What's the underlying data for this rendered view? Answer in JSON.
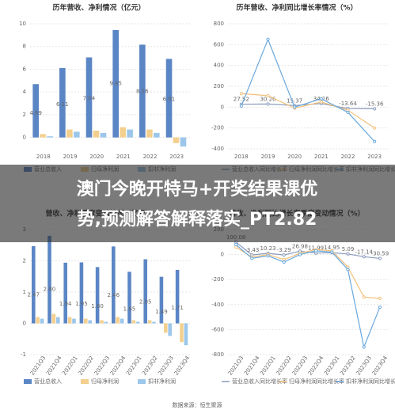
{
  "chart_data": [
    {
      "type": "bar",
      "title": "历年营收、净利情况（亿元）",
      "categories": [
        "2018",
        "2019",
        "2020",
        "2021",
        "2022",
        "2023"
      ],
      "ylim": [
        -1,
        10
      ],
      "yticks": [
        0,
        2,
        4,
        6,
        8,
        10
      ],
      "grid": true,
      "series": [
        {
          "name": "营业总收入",
          "color": "#5b86c5",
          "values": [
            4.69,
            6.11,
            7.04,
            9.45,
            8.16,
            6.91
          ]
        },
        {
          "name": "归母净利润",
          "color": "#f3d08e",
          "values": [
            0.3,
            0.7,
            0.6,
            0.9,
            0.7,
            -0.5
          ]
        },
        {
          "name": "扣非净利润",
          "color": "#9cc7ea",
          "values": [
            0.1,
            0.5,
            0.4,
            0.7,
            0.4,
            -0.8
          ]
        }
      ]
    },
    {
      "type": "line",
      "title": "历年营收、净利同比增长率情况（%）",
      "categories": [
        "2018",
        "2019",
        "2020",
        "2021",
        "2022",
        "2023"
      ],
      "ylim": [
        -400,
        800
      ],
      "yticks": [
        -400,
        -200,
        0,
        200,
        400,
        600,
        800
      ],
      "grid": true,
      "series": [
        {
          "name": "营业总收入同比增长率",
          "color": "#8a9bbd",
          "values": [
            27.52,
            30.26,
            15.37,
            34.16,
            -13.64,
            -15.36
          ]
        },
        {
          "name": "归母净利润同比增长率",
          "color": "#f2c07a",
          "values": [
            130,
            110,
            -10,
            50,
            -30,
            -200
          ]
        },
        {
          "name": "扣非净利润同比增长率",
          "color": "#6aa9de",
          "values": [
            10,
            650,
            0,
            80,
            -50,
            -330
          ]
        }
      ]
    },
    {
      "type": "bar",
      "title": "营收、净利季度变动情况（亿元）",
      "categories": [
        "2021Q3",
        "2021Q4",
        "2022Q1",
        "2022Q2",
        "2022Q3",
        "2022Q4",
        "2023Q1",
        "2023Q2",
        "2023Q3",
        "2023Q4"
      ],
      "ylim": [
        -1,
        3
      ],
      "yticks": [
        -1,
        0,
        1,
        2,
        3
      ],
      "grid": true,
      "series": [
        {
          "name": "营业总收入",
          "color": "#5b86c5",
          "values": [
            2.47,
            2.8,
            1.94,
            1.95,
            1.8,
            2.46,
            1.65,
            2.05,
            1.49,
            1.71
          ],
          "value_labels": [
            "2.47",
            "2.80",
            "1.94",
            "1.95",
            "1.80",
            "2.46",
            "1.65",
            "2.05",
            "1.49",
            "1.71"
          ]
        },
        {
          "name": "归母净利润",
          "color": "#f3d08e",
          "values": [
            0.2,
            0.3,
            0.2,
            0.15,
            0.1,
            0.2,
            0.1,
            0.1,
            -0.3,
            -0.6
          ]
        },
        {
          "name": "扣非净利润",
          "color": "#9cc7ea",
          "values": [
            0.15,
            0.2,
            0.15,
            0.1,
            0.05,
            0.15,
            0.05,
            0.05,
            -0.4,
            -0.7
          ]
        }
      ]
    },
    {
      "type": "line",
      "title": "营收、净利同比增长率季度变动情况（%）",
      "categories": [
        "2021Q3",
        "2021Q4",
        "2022Q1",
        "2022Q2",
        "2022Q3",
        "2022Q4",
        "2023Q1",
        "2023Q2",
        "2023Q3",
        "2023Q4"
      ],
      "ylim": [
        -800,
        200
      ],
      "yticks": [
        -800,
        -600,
        -400,
        -200,
        0,
        200
      ],
      "grid": true,
      "series": [
        {
          "name": "营业总收入同比增长率",
          "color": "#8a9bbd",
          "values": [
            100.08,
            -3.43,
            10.23,
            -3.29,
            26.98,
            11.99,
            14.95,
            5.09,
            -17.14,
            -30.59
          ]
        },
        {
          "name": "归母净利润同比增长率",
          "color": "#f2c07a",
          "values": [
            60,
            -20,
            0,
            -40,
            10,
            40,
            30,
            -100,
            -340,
            -350
          ]
        },
        {
          "name": "扣非净利润同比增长率",
          "color": "#6aa9de",
          "values": [
            80,
            -30,
            -10,
            -60,
            0,
            30,
            20,
            -120,
            -740,
            -420
          ]
        }
      ]
    }
  ],
  "banner": {
    "lines": [
      "澳门今晚开特马+开奖结果课优",
      "势,预测解答解释落实_PT2.82"
    ]
  },
  "source": "数据来源：恒生聚源"
}
